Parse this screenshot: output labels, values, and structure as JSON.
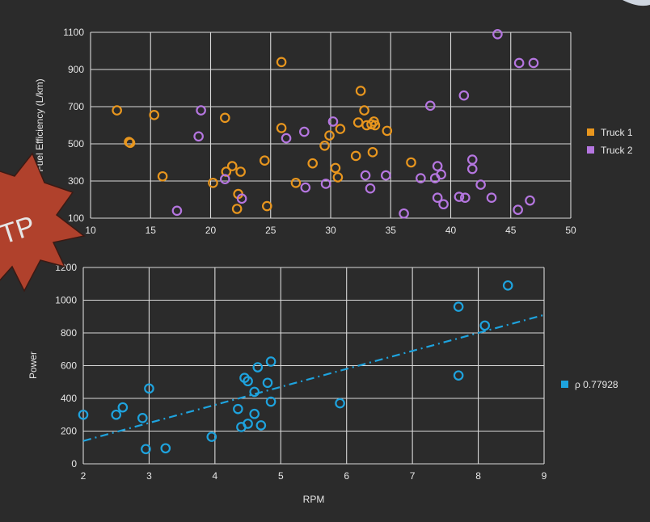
{
  "badge": {
    "text": "TP",
    "fill": "#b0412c"
  },
  "chart_data": [
    {
      "type": "scatter",
      "title": "",
      "xlabel": "",
      "ylabel": "Fuel Efficiency (L/km)",
      "xlim": [
        10,
        50
      ],
      "ylim": [
        100,
        1100
      ],
      "x_ticks": [
        "10",
        "15",
        "20",
        "25",
        "30",
        "35",
        "40",
        "45",
        "50"
      ],
      "y_ticks": [
        "100",
        "300",
        "500",
        "700",
        "900",
        "1100"
      ],
      "y_tick_values": [
        100,
        300,
        500,
        700,
        900,
        1100
      ],
      "grid": true,
      "legend_position": "right",
      "series": [
        {
          "name": "Truck 1",
          "color": "#e8961e",
          "points": [
            [
              12.2,
              680
            ],
            [
              13.2,
              510
            ],
            [
              13.3,
              505
            ],
            [
              15.3,
              655
            ],
            [
              16.0,
              325
            ],
            [
              20.2,
              290
            ],
            [
              21.2,
              640
            ],
            [
              21.3,
              350
            ],
            [
              21.8,
              380
            ],
            [
              22.3,
              230
            ],
            [
              22.5,
              350
            ],
            [
              22.2,
              150
            ],
            [
              24.5,
              410
            ],
            [
              24.7,
              165
            ],
            [
              25.9,
              940
            ],
            [
              25.9,
              585
            ],
            [
              27.1,
              290
            ],
            [
              28.5,
              395
            ],
            [
              29.5,
              490
            ],
            [
              29.9,
              545
            ],
            [
              30.4,
              370
            ],
            [
              30.6,
              320
            ],
            [
              30.8,
              580
            ],
            [
              32.1,
              435
            ],
            [
              32.3,
              615
            ],
            [
              32.5,
              785
            ],
            [
              32.8,
              680
            ],
            [
              33.0,
              600
            ],
            [
              33.4,
              605
            ],
            [
              33.6,
              620
            ],
            [
              33.7,
              600
            ],
            [
              33.5,
              455
            ],
            [
              34.7,
              570
            ],
            [
              36.7,
              400
            ]
          ]
        },
        {
          "name": "Truck 2",
          "color": "#b576e0",
          "points": [
            [
              17.2,
              140
            ],
            [
              19.2,
              680
            ],
            [
              19.0,
              540
            ],
            [
              21.2,
              310
            ],
            [
              22.6,
              205
            ],
            [
              26.3,
              530
            ],
            [
              27.8,
              565
            ],
            [
              27.9,
              265
            ],
            [
              29.6,
              285
            ],
            [
              30.2,
              620
            ],
            [
              32.9,
              330
            ],
            [
              33.3,
              260
            ],
            [
              34.6,
              330
            ],
            [
              36.1,
              125
            ],
            [
              37.5,
              315
            ],
            [
              38.3,
              705
            ],
            [
              38.7,
              315
            ],
            [
              38.9,
              380
            ],
            [
              38.9,
              210
            ],
            [
              39.2,
              335
            ],
            [
              39.4,
              175
            ],
            [
              40.7,
              215
            ],
            [
              41.1,
              760
            ],
            [
              41.2,
              210
            ],
            [
              41.8,
              415
            ],
            [
              41.8,
              365
            ],
            [
              42.5,
              280
            ],
            [
              43.4,
              210
            ],
            [
              43.9,
              1090
            ],
            [
              45.7,
              935
            ],
            [
              45.6,
              145
            ],
            [
              46.6,
              195
            ],
            [
              46.9,
              935
            ]
          ]
        }
      ]
    },
    {
      "type": "scatter",
      "title": "",
      "xlabel": "RPM",
      "ylabel": "Power",
      "xlim": [
        2,
        9
      ],
      "ylim": [
        0,
        1200
      ],
      "x_ticks": [
        "2",
        "3",
        "4",
        "5",
        "6",
        "7",
        "8",
        "9"
      ],
      "y_ticks": [
        "0",
        "200",
        "400",
        "600",
        "800",
        "1000",
        "1200"
      ],
      "y_tick_values": [
        0,
        200,
        400,
        600,
        800,
        1000,
        1200
      ],
      "grid": true,
      "legend_position": "right",
      "trendline": {
        "style": "dash-dot",
        "start": [
          2,
          140
        ],
        "end": [
          9,
          910
        ]
      },
      "series": [
        {
          "name": "ρ 0.77928",
          "color": "#1ea3de",
          "points": [
            [
              2.0,
              300
            ],
            [
              2.5,
              300
            ],
            [
              2.6,
              345
            ],
            [
              2.9,
              280
            ],
            [
              2.95,
              90
            ],
            [
              3.0,
              460
            ],
            [
              3.25,
              95
            ],
            [
              3.95,
              165
            ],
            [
              4.35,
              335
            ],
            [
              4.4,
              225
            ],
            [
              4.45,
              525
            ],
            [
              4.5,
              505
            ],
            [
              4.5,
              245
            ],
            [
              4.6,
              305
            ],
            [
              4.6,
              440
            ],
            [
              4.65,
              590
            ],
            [
              4.7,
              235
            ],
            [
              4.8,
              495
            ],
            [
              4.85,
              625
            ],
            [
              4.85,
              380
            ],
            [
              5.9,
              370
            ],
            [
              7.7,
              960
            ],
            [
              7.7,
              540
            ],
            [
              8.1,
              845
            ],
            [
              8.45,
              1090
            ]
          ]
        }
      ]
    }
  ]
}
